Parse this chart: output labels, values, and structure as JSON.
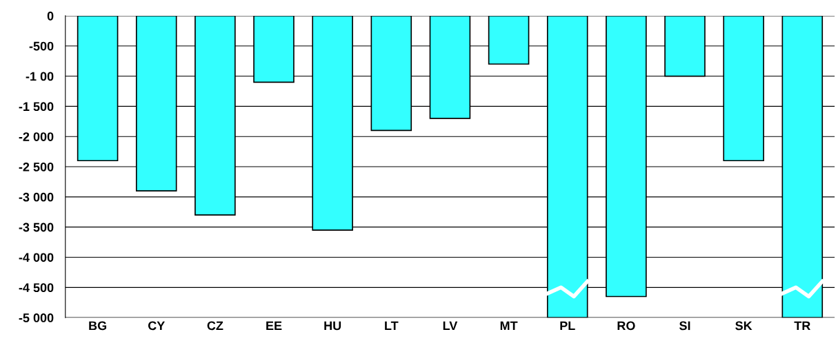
{
  "chart_data": {
    "type": "bar",
    "categories": [
      "BG",
      "CY",
      "CZ",
      "EE",
      "HU",
      "LT",
      "LV",
      "MT",
      "PL",
      "RO",
      "SI",
      "SK",
      "TR"
    ],
    "values": [
      -2400,
      -2900,
      -3300,
      -1100,
      -3550,
      -1900,
      -1700,
      -800,
      -5000,
      -4650,
      -1000,
      -2400,
      -5000
    ],
    "color": "#33ffff",
    "ylim": [
      -5000,
      0
    ],
    "yticks": [
      {
        "value": -5000,
        "label": "-5 000"
      },
      {
        "value": -4500,
        "label": "-4 500"
      },
      {
        "value": -4000,
        "label": "-4 000"
      },
      {
        "value": -3500,
        "label": "-3 500"
      },
      {
        "value": -3000,
        "label": "-3 000"
      },
      {
        "value": -2500,
        "label": "-2 500"
      },
      {
        "value": -2000,
        "label": "-2 000"
      },
      {
        "value": -1500,
        "label": "-1 500"
      },
      {
        "value": -1000,
        "label": "-1 00"
      },
      {
        "value": -500,
        "label": "-500"
      },
      0
    ],
    "grid": "y"
  }
}
